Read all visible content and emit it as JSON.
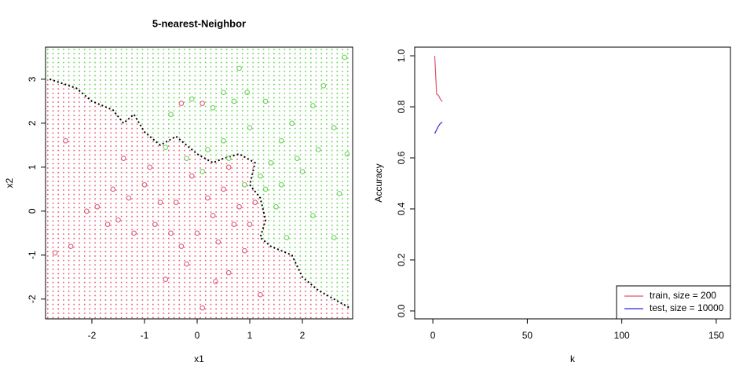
{
  "chart_data": [
    {
      "type": "scatter",
      "title": "5-nearest-Neighbor",
      "xlabel": "x1",
      "ylabel": "x2",
      "xlim": [
        -2.88,
        2.955
      ],
      "ylim": [
        -2.45,
        3.73
      ],
      "xticks": [
        -2,
        -1,
        0,
        1,
        2
      ],
      "yticks": [
        -2,
        -1,
        0,
        1,
        2,
        3
      ],
      "series": [
        {
          "color": "#DF536B",
          "x": [
            -2.7,
            -2.4,
            -2.1,
            -1.9,
            -1.7,
            -1.5,
            -1.6,
            -1.3,
            -1.2,
            -1.0,
            -0.9,
            -0.8,
            -0.6,
            -0.5,
            -0.4,
            -0.3,
            -0.2,
            -0.1,
            0,
            0.1,
            0.2,
            0.3,
            0.4,
            0.5,
            0.6,
            0.7,
            0.8,
            0.9,
            1.0,
            1.1,
            1.2,
            -0.3,
            0.1,
            -1.4,
            -2.5,
            0.6,
            -0.7,
            0.35
          ],
          "y": [
            -0.95,
            -0.8,
            0,
            0.1,
            -0.3,
            -0.2,
            0.5,
            0.3,
            -0.5,
            0.6,
            1.0,
            -0.3,
            -1.55,
            -0.5,
            0.2,
            -0.8,
            -1.2,
            0.8,
            -0.5,
            -2.2,
            0.3,
            -0.1,
            -0.7,
            0.5,
            -1.4,
            -0.3,
            0.1,
            -0.9,
            -0.3,
            0.2,
            -1.9,
            2.45,
            2.45,
            1.2,
            1.6,
            1.0,
            0.2,
            -1.6
          ]
        },
        {
          "color": "#61D04F",
          "x": [
            2.8,
            2.4,
            0.8,
            1.3,
            0.5,
            -0.1,
            0.3,
            0.7,
            0.95,
            1.8,
            2.2,
            2.6,
            2.85,
            2.3,
            1.6,
            1.9,
            1.4,
            1.2,
            0.9,
            0.5,
            0.2,
            -0.2,
            -0.5,
            1.5,
            1.7,
            2.6,
            2.7,
            1.3,
            0.6,
            1.0,
            -0.6,
            2.0,
            1.6,
            0.1,
            2.2
          ],
          "y": [
            3.5,
            2.85,
            3.25,
            2.5,
            2.7,
            2.55,
            2.35,
            2.5,
            2.7,
            2.0,
            2.4,
            1.9,
            1.3,
            1.4,
            1.6,
            1.2,
            1.1,
            0.8,
            0.6,
            1.6,
            1.4,
            1.2,
            2.2,
            0.1,
            -0.6,
            -0.6,
            0.4,
            0.5,
            1.2,
            1.9,
            1.45,
            0.9,
            0.6,
            0.9,
            -0.1
          ]
        }
      ],
      "boundary": {
        "color": "#000000",
        "x": [
          -2.8,
          -2.3,
          -2.0,
          -1.6,
          -1.4,
          -1.2,
          -1.0,
          -0.7,
          -0.4,
          -0.2,
          0,
          0.3,
          0.5,
          0.8,
          1.1,
          1.0,
          1.2,
          1.3,
          1.2,
          1.4,
          1.8,
          2.0,
          2.3,
          2.6,
          2.9
        ],
        "y": [
          3.0,
          2.8,
          2.5,
          2.3,
          2.0,
          2.2,
          1.8,
          1.5,
          1.7,
          1.5,
          1.3,
          1.1,
          1.2,
          1.3,
          1.1,
          0.6,
          0.3,
          -0.2,
          -0.6,
          -0.8,
          -1.0,
          -1.5,
          -1.8,
          -2.0,
          -2.2
        ]
      }
    },
    {
      "type": "line",
      "xlabel": "k",
      "ylabel": "Accuracy",
      "xlim": [
        -9.6,
        157.5
      ],
      "ylim": [
        -0.031,
        1.034
      ],
      "xticks": [
        0,
        50,
        100,
        150
      ],
      "yticks": [
        {
          "value": 0,
          "label": "0.0"
        },
        {
          "value": 0.2,
          "label": "0.2"
        },
        {
          "value": 0.4,
          "label": "0.4"
        },
        {
          "value": 0.6,
          "label": "0.6"
        },
        {
          "value": 0.8,
          "label": "0.8"
        },
        {
          "value": 1,
          "label": "1.0"
        }
      ],
      "legend": "bottomright",
      "x": [
        1,
        2,
        3,
        4,
        5
      ],
      "series": [
        {
          "name": "train, size = 200",
          "color": "#DF536B",
          "values": [
            1.0,
            0.85,
            0.845,
            0.83,
            0.82
          ]
        },
        {
          "name": "test, size = 10000",
          "color": "#2828E0",
          "values": [
            0.695,
            0.71,
            0.725,
            0.735,
            0.74
          ]
        }
      ]
    }
  ]
}
